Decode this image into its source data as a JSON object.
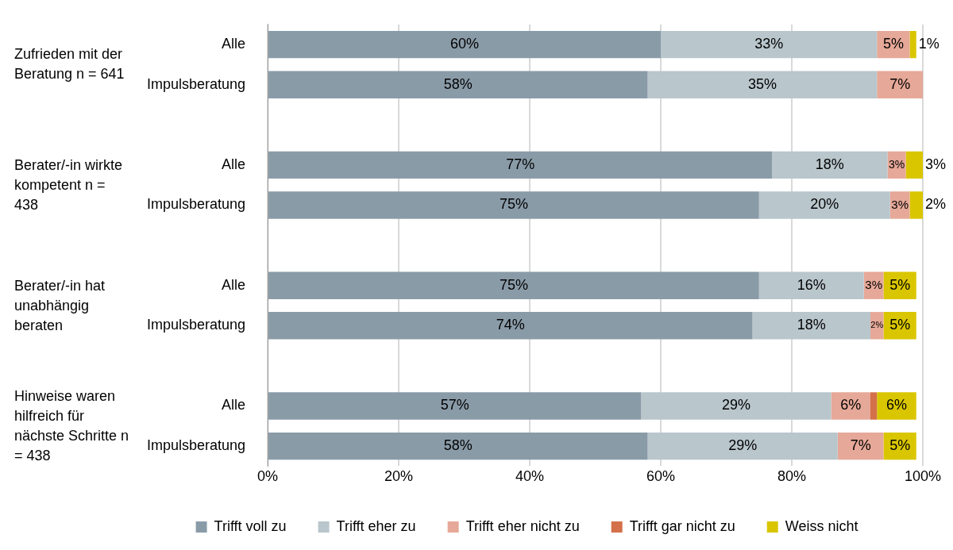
{
  "chart_data": {
    "type": "bar",
    "orientation": "horizontal",
    "stacked": true,
    "categories": [
      "Alle",
      "Impulsberatung",
      null,
      "Alle",
      "Impulsberatung",
      null,
      "Alle",
      "Impulsberatung",
      null,
      "Alle",
      "Impulsberatung"
    ],
    "series": [
      {
        "name": "Trifft voll zu",
        "color": "#8a9ba8",
        "values": [
          60,
          58,
          null,
          77,
          75,
          null,
          75,
          74,
          null,
          57,
          58
        ],
        "value_labels": [
          "60%",
          "58%",
          null,
          "77%",
          "75%",
          null,
          "75%",
          "74%",
          null,
          "57%",
          "58%"
        ]
      },
      {
        "name": "Trifft eher zu",
        "color": "#b9c6cc",
        "values": [
          33,
          35,
          null,
          17.6,
          20,
          null,
          16,
          18,
          null,
          29,
          29
        ],
        "value_labels": [
          "33%",
          "35%",
          null,
          "18%",
          "20%",
          null,
          "16%",
          "18%",
          null,
          "29%",
          "29%"
        ]
      },
      {
        "name": "Trifft eher nicht zu",
        "color": "#e6a898",
        "values": [
          5,
          7,
          null,
          2.8,
          3,
          null,
          3,
          2,
          null,
          6,
          7
        ],
        "value_labels": [
          "5%",
          "7%",
          null,
          "3%",
          "3%",
          null,
          "3%",
          "2%",
          null,
          "6%",
          "7%"
        ]
      },
      {
        "name": "Trifft gar nicht zu",
        "color": "#d4704a",
        "values": [
          0,
          0,
          null,
          0,
          0,
          null,
          0,
          0,
          null,
          1,
          0
        ],
        "value_labels": [
          null,
          null,
          null,
          null,
          null,
          null,
          null,
          null,
          null,
          null,
          null
        ]
      },
      {
        "name": "Weiss nicht",
        "color": "#d9c600",
        "values": [
          1,
          0,
          null,
          2.6,
          2,
          null,
          5,
          5,
          null,
          6,
          5
        ],
        "value_labels": [
          "1%",
          null,
          null,
          "3%",
          "2%",
          null,
          "5%",
          "5%",
          null,
          "6%",
          "5%"
        ]
      }
    ],
    "xlim": [
      0,
      100
    ],
    "xticks": [
      {
        "value": 0,
        "label": "0%"
      },
      {
        "value": 20,
        "label": "20%"
      },
      {
        "value": 40,
        "label": "40%"
      },
      {
        "value": 60,
        "label": "60%"
      },
      {
        "value": 80,
        "label": "80%"
      },
      {
        "value": 100,
        "label": "100%"
      }
    ],
    "grid": "x",
    "legend": "bottom",
    "annotations": [
      "Zufrieden mit der Beratung n = 641",
      "Berater/-in wirkte kompetent n = 438",
      "Berater/-in hat unabhängig beraten",
      "Hinweise waren hilfreich für nächste Schritte n = 438"
    ]
  }
}
